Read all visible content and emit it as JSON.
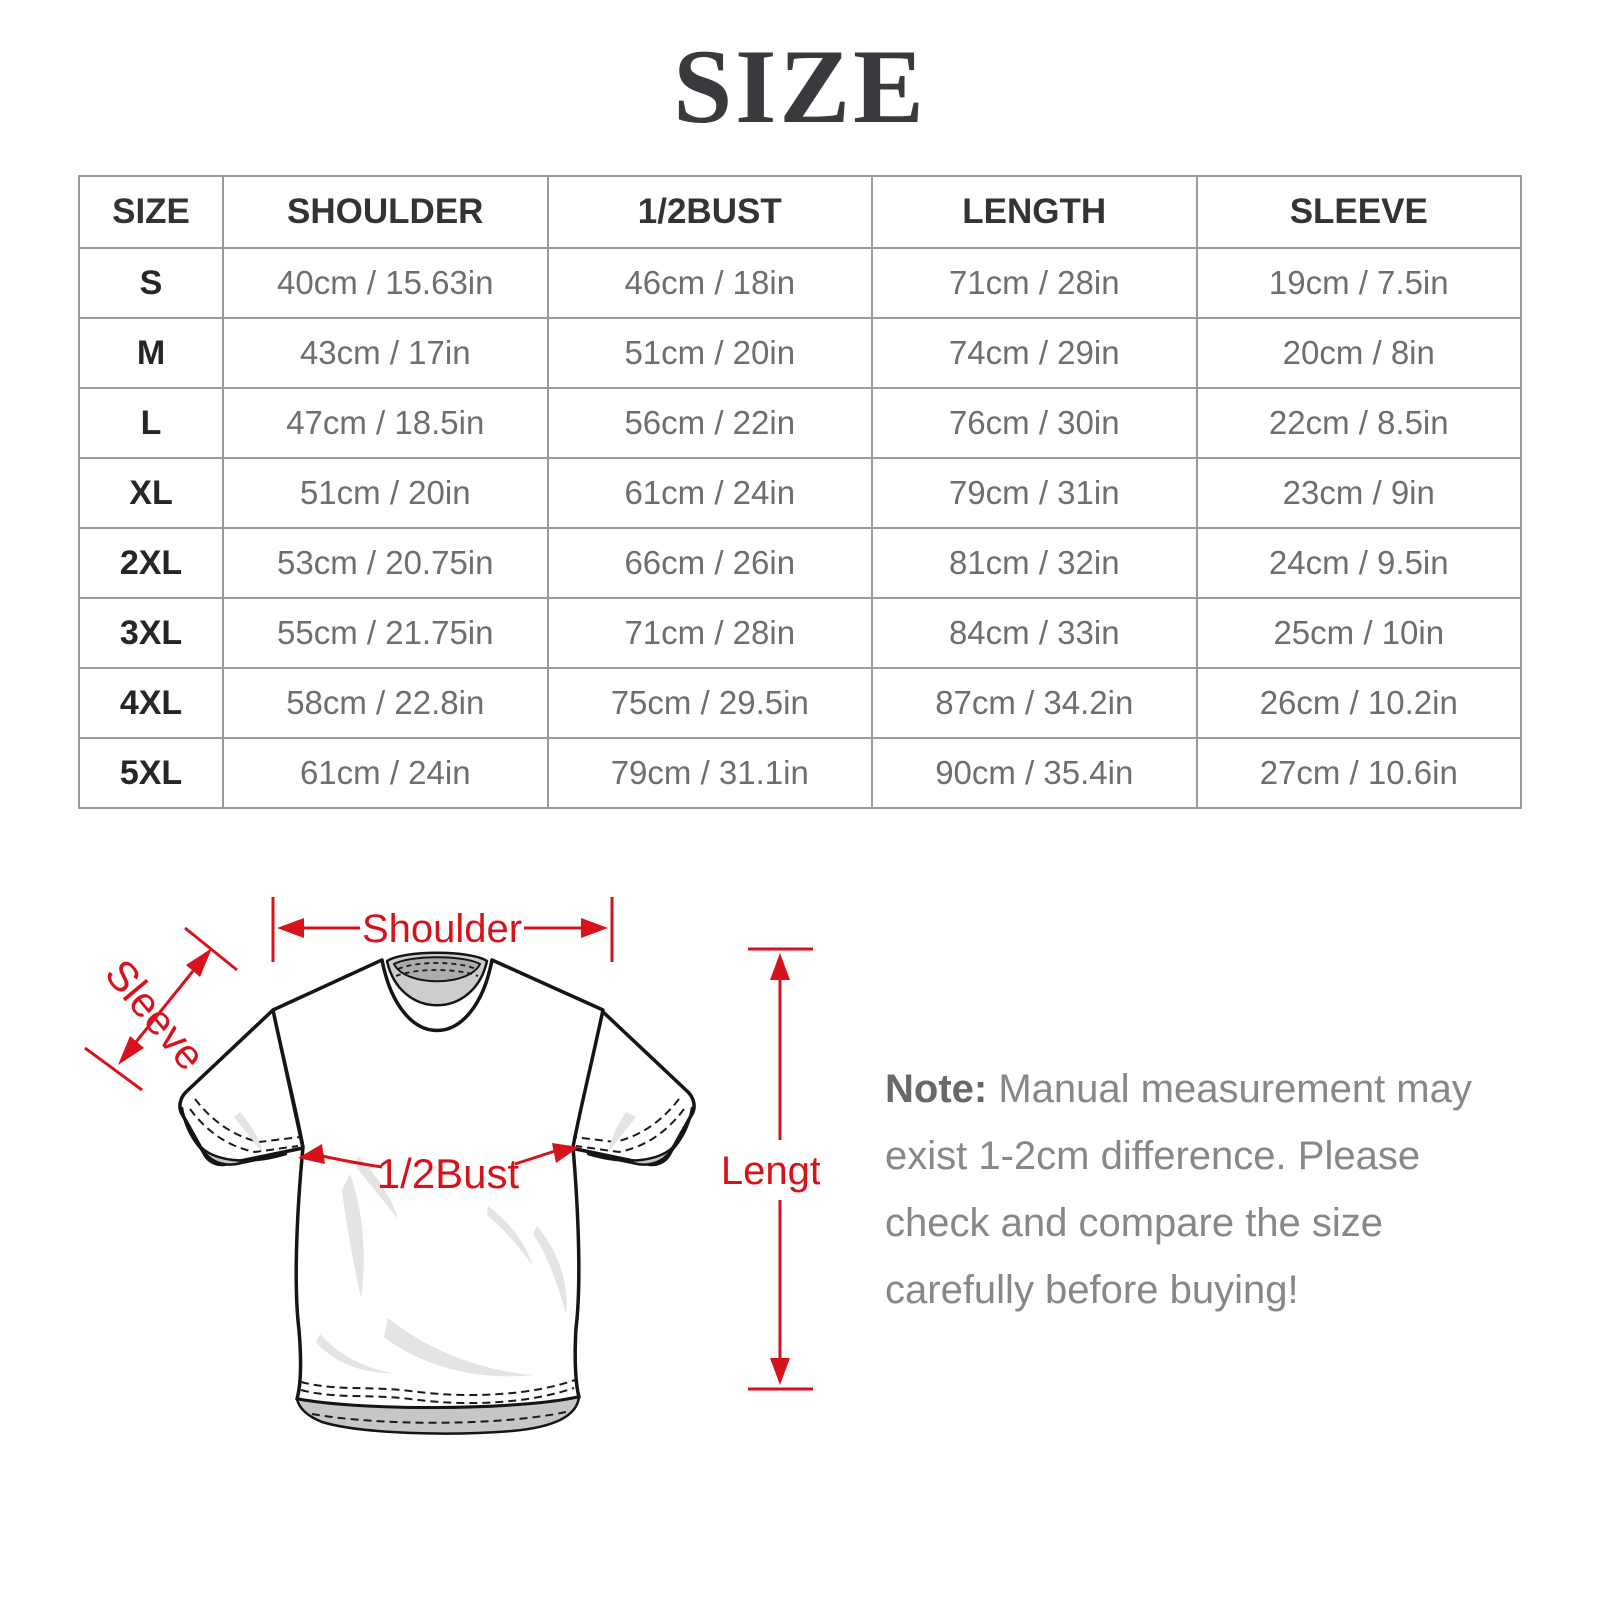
{
  "title": "SIZE",
  "table": {
    "headers": [
      "SIZE",
      "SHOULDER",
      "1/2BUST",
      "LENGTH",
      "SLEEVE"
    ],
    "rows": [
      [
        "S",
        "40cm / 15.63in",
        "46cm / 18in",
        "71cm / 28in",
        "19cm / 7.5in"
      ],
      [
        "M",
        "43cm / 17in",
        "51cm / 20in",
        "74cm / 29in",
        "20cm / 8in"
      ],
      [
        "L",
        "47cm / 18.5in",
        "56cm / 22in",
        "76cm / 30in",
        "22cm / 8.5in"
      ],
      [
        "XL",
        "51cm / 20in",
        "61cm / 24in",
        "79cm / 31in",
        "23cm / 9in"
      ],
      [
        "2XL",
        "53cm / 20.75in",
        "66cm / 26in",
        "81cm / 32in",
        "24cm / 9.5in"
      ],
      [
        "3XL",
        "55cm / 21.75in",
        "71cm / 28in",
        "84cm / 33in",
        "25cm / 10in"
      ],
      [
        "4XL",
        "58cm / 22.8in",
        "75cm / 29.5in",
        "87cm / 34.2in",
        "26cm / 10.2in"
      ],
      [
        "5XL",
        "61cm / 24in",
        "79cm / 31.1in",
        "90cm / 35.4in",
        "27cm / 10.6in"
      ]
    ]
  },
  "diagram": {
    "labels": {
      "shoulder": "Shoulder",
      "sleeve": "Sleeve",
      "bust": "1/2Bust",
      "length": "Length"
    },
    "accent_color": "#d8121b"
  },
  "note": {
    "label": "Note:",
    "text": " Manual measurement may exist 1-2cm difference. Please check and compare the size carefully before buying!"
  }
}
